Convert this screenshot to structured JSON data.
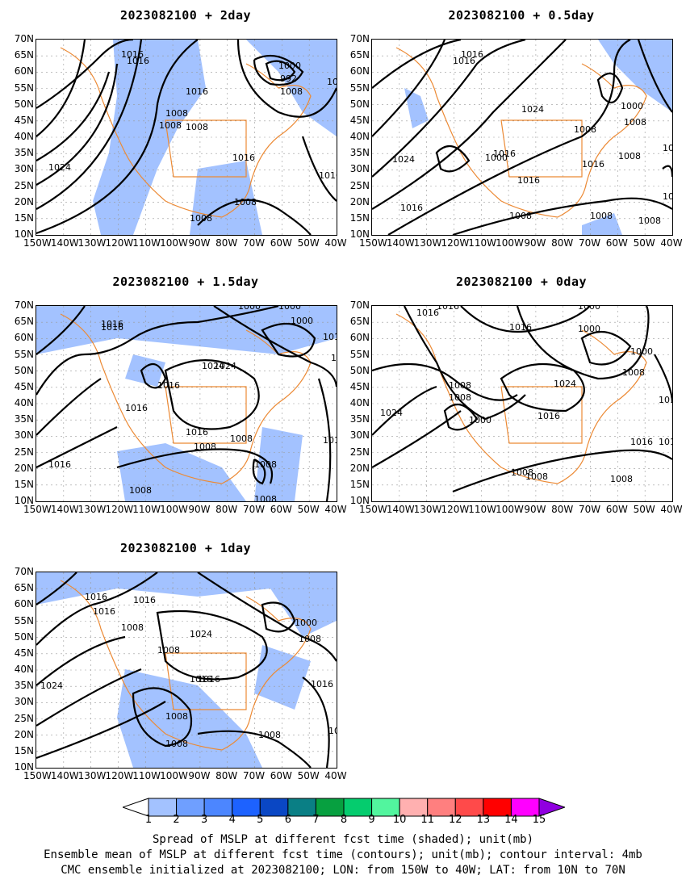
{
  "panels": [
    {
      "id": "p2day",
      "title": "2023082100  +  2day",
      "col": 0,
      "row": 0,
      "contour_labels": [
        "1016",
        "1016",
        "1000",
        "992",
        "1016",
        "1016",
        "1008",
        "1008",
        "1008",
        "1016",
        "1016",
        "1024",
        "1008",
        "1008",
        "1008",
        "100"
      ]
    },
    {
      "id": "p05day",
      "title": "2023082100  +  0.5day",
      "col": 1,
      "row": 0,
      "contour_labels": [
        "1016",
        "1016",
        "1024",
        "1000",
        "1008",
        "1008",
        "1000",
        "1016",
        "1016",
        "1016",
        "1016",
        "1024",
        "1016",
        "1008",
        "1008",
        "1008",
        "1008",
        "1008",
        "102",
        "1008"
      ]
    },
    {
      "id": "p15day",
      "title": "2023082100  +  1.5day",
      "col": 0,
      "row": 1,
      "contour_labels": [
        "1016",
        "1016",
        "1000",
        "1000",
        "1000",
        "1016",
        "1008",
        "1024",
        "1024",
        "1016",
        "1016",
        "1016",
        "1008",
        "1016",
        "1016",
        "1008",
        "1008",
        "1008",
        "1008"
      ]
    },
    {
      "id": "p0day",
      "title": "2023082100  +  0day",
      "col": 1,
      "row": 1,
      "contour_labels": [
        "1016",
        "1016",
        "1000",
        "1000",
        "1016",
        "1000",
        "1024",
        "1008",
        "1008",
        "1024",
        "1008",
        "1000",
        "1016",
        "1016",
        "1016",
        "1016",
        "1008",
        "1008",
        "1008"
      ]
    },
    {
      "id": "p1day",
      "title": "2023082100  +  1day",
      "col": 0,
      "row": 2,
      "contour_labels": [
        "1016",
        "1016",
        "1016",
        "1008",
        "1008",
        "1000",
        "1024",
        "1008",
        "1016",
        "1016",
        "1016",
        "1008",
        "1008",
        "1008",
        "1008",
        "1024"
      ]
    }
  ],
  "axes": {
    "lat_ticks": [
      "70N",
      "65N",
      "60N",
      "55N",
      "50N",
      "45N",
      "40N",
      "35N",
      "30N",
      "25N",
      "20N",
      "15N",
      "10N"
    ],
    "lon_ticks": [
      "150W",
      "140W",
      "130W",
      "120W",
      "110W",
      "100W",
      "90W",
      "80W",
      "70W",
      "60W",
      "50W",
      "40W"
    ]
  },
  "colorbar": {
    "labels": [
      "1",
      "2",
      "3",
      "4",
      "5",
      "6",
      "7",
      "8",
      "9",
      "10",
      "11",
      "12",
      "13",
      "14",
      "15"
    ],
    "colors": [
      "#ffffff",
      "#a3c2ff",
      "#6f9fff",
      "#4c86ff",
      "#1d62ff",
      "#0a47c4",
      "#0a7f85",
      "#07a040",
      "#05cc6e",
      "#52f59e",
      "#ffb0b0",
      "#ff7f7f",
      "#ff4a4a",
      "#ff0000",
      "#ff00ff",
      "#9000e0"
    ]
  },
  "colors": {
    "shading": "#a3c2ff",
    "coast": "#ec8a35",
    "contour": "#000000",
    "grid": "#999999"
  },
  "captions": [
    "Spread of MSLP at different fcst time (shaded); unit(mb)",
    "Ensemble mean of MSLP at different fcst time (contours); unit(mb); contour interval: 4mb",
    "CMC ensemble initialized at 2023082100; LON: from 150W to 40W; LAT: from 10N to 70N"
  ]
}
